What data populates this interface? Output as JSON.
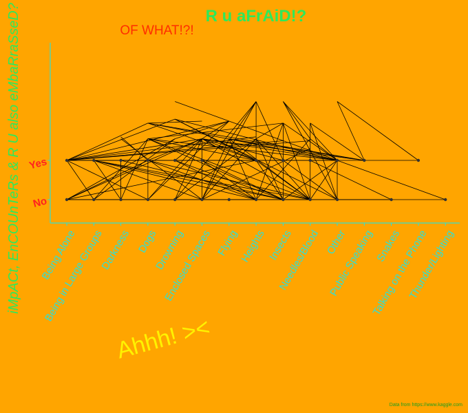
{
  "chart_data": {
    "type": "line",
    "title": "R u aFrAiD!?",
    "subtitle": "OF WHAT!?!",
    "ylabel": "iMpACt, EnCOUnTeRs & R U also eMbaRraSseD?",
    "annotation": "Ahhh! ><",
    "source": "Data from https://www.kaggle.com",
    "categories": [
      "Being Alone",
      "Being in Large Groups",
      "Darkness",
      "Dogs",
      "Drowning",
      "Enclosed Spaces",
      "Flying",
      "Heights",
      "Insects",
      "Needles/Blood",
      "Other",
      "Public Speaking",
      "Snakes",
      "Talking on the Phone",
      "Thunder/Lighting"
    ],
    "y_levels": [
      "No",
      "Yes"
    ],
    "y_range": [
      0,
      2.5
    ],
    "points": [
      {
        "x": "Being Alone",
        "y": 0
      },
      {
        "x": "Being in Large Groups",
        "y": 0
      },
      {
        "x": "Darkness",
        "y": 0
      },
      {
        "x": "Dogs",
        "y": 0
      },
      {
        "x": "Drowning",
        "y": 0
      },
      {
        "x": "Enclosed Spaces",
        "y": 0
      },
      {
        "x": "Flying",
        "y": 0
      },
      {
        "x": "Heights",
        "y": 0
      },
      {
        "x": "Insects",
        "y": 0
      },
      {
        "x": "Needles/Blood",
        "y": 0
      },
      {
        "x": "Other",
        "y": 0
      },
      {
        "x": "Snakes",
        "y": 0
      },
      {
        "x": "Thunder/Lighting",
        "y": 0
      },
      {
        "x": "Being Alone",
        "y": 1
      },
      {
        "x": "Being in Large Groups",
        "y": 1
      },
      {
        "x": "Darkness",
        "y": 1
      },
      {
        "x": "Dogs",
        "y": 1
      },
      {
        "x": "Drowning",
        "y": 1
      },
      {
        "x": "Enclosed Spaces",
        "y": 1
      },
      {
        "x": "Heights",
        "y": 1
      },
      {
        "x": "Insects",
        "y": 1
      },
      {
        "x": "Needles/Blood",
        "y": 1
      },
      {
        "x": "Other",
        "y": 1
      },
      {
        "x": "Public Speaking",
        "y": 1
      },
      {
        "x": "Talking on the Phone",
        "y": 1
      }
    ],
    "edges": [
      [
        "Being Alone",
        1,
        "Drowning",
        2.05
      ],
      [
        "Being Alone",
        1,
        "Enclosed Spaces",
        1.55
      ],
      [
        "Being Alone",
        1,
        "Dogs",
        1.95
      ],
      [
        "Being Alone",
        1,
        "Flying",
        2.0
      ],
      [
        "Being Alone",
        1,
        "Heights",
        1.6
      ],
      [
        "Being Alone",
        1,
        "Insects",
        1.5
      ],
      [
        "Being Alone",
        1,
        "Needles/Blood",
        1.5
      ],
      [
        "Being Alone",
        1,
        "Other",
        1
      ],
      [
        "Being Alone",
        1,
        "Being in Large Groups",
        1
      ],
      [
        "Being Alone",
        1,
        "Being in Large Groups",
        0
      ],
      [
        "Being Alone",
        1,
        "Dogs",
        0
      ],
      [
        "Being Alone",
        0,
        "Dogs",
        1
      ],
      [
        "Being Alone",
        0,
        "Enclosed Spaces",
        1.55
      ],
      [
        "Being Alone",
        0,
        "Drowning",
        1.55
      ],
      [
        "Being Alone",
        0,
        "Heights",
        1
      ],
      [
        "Being Alone",
        0,
        "Needles/Blood",
        0
      ],
      [
        "Being in Large Groups",
        1,
        "Needles/Blood",
        0
      ],
      [
        "Being in Large Groups",
        1,
        "Insects",
        0
      ],
      [
        "Being in Large Groups",
        1,
        "Heights",
        0
      ],
      [
        "Being in Large Groups",
        1,
        "Dogs",
        1
      ],
      [
        "Being in Large Groups",
        1,
        "Darkness",
        0
      ],
      [
        "Being in Large Groups",
        1,
        "Enclosed Spaces",
        0
      ],
      [
        "Being in Large Groups",
        0,
        "Dogs",
        1.55
      ],
      [
        "Being in Large Groups",
        0,
        "Drowning",
        1.55
      ],
      [
        "Darkness",
        1,
        "Insects",
        0
      ],
      [
        "Darkness",
        1,
        "Dogs",
        1
      ],
      [
        "Darkness",
        1,
        "Darkness",
        0
      ],
      [
        "Darkness",
        0,
        "Dogs",
        1.55
      ],
      [
        "Darkness",
        1.55,
        "Enclosed Spaces",
        0
      ],
      [
        "Darkness",
        1.6,
        "Dogs",
        1
      ],
      [
        "Dogs",
        1,
        "Dogs",
        0
      ],
      [
        "Dogs",
        1,
        "Heights",
        0
      ],
      [
        "Dogs",
        1,
        "Needles/Blood",
        0
      ],
      [
        "Dogs",
        1,
        "Enclosed Spaces",
        1.55
      ],
      [
        "Dogs",
        1.55,
        "Needles/Blood",
        0
      ],
      [
        "Dogs",
        1.55,
        "Other",
        1
      ],
      [
        "Dogs",
        1.55,
        "Heights",
        1
      ],
      [
        "Dogs",
        1.55,
        "Insects",
        0
      ],
      [
        "Dogs",
        1.95,
        "Heights",
        1
      ],
      [
        "Dogs",
        1.95,
        "Other",
        1
      ],
      [
        "Dogs",
        1.95,
        "Public Speaking",
        1
      ],
      [
        "Dogs",
        1.95,
        "Enclosed Spaces",
        2.0
      ],
      [
        "Dogs",
        0,
        "Enclosed Spaces",
        1.55
      ],
      [
        "Drowning",
        1,
        "Enclosed Spaces",
        1.55
      ],
      [
        "Drowning",
        1,
        "Heights",
        0
      ],
      [
        "Drowning",
        1,
        "Insects",
        0
      ],
      [
        "Drowning",
        2.05,
        "Heights",
        1
      ],
      [
        "Drowning",
        2.05,
        "Other",
        0
      ],
      [
        "Drowning",
        2.05,
        "Other",
        1
      ],
      [
        "Drowning",
        0,
        "Heights",
        1.55
      ],
      [
        "Drowning",
        0,
        "Enclosed Spaces",
        1.55
      ],
      [
        "Enclosed Spaces",
        1.55,
        "Enclosed Spaces",
        0
      ],
      [
        "Enclosed Spaces",
        1.55,
        "Needles/Blood",
        0
      ],
      [
        "Enclosed Spaces",
        1.55,
        "Other",
        1
      ],
      [
        "Enclosed Spaces",
        1.55,
        "Public Speaking",
        1
      ],
      [
        "Enclosed Spaces",
        1.55,
        "Heights",
        1
      ],
      [
        "Enclosed Spaces",
        1.55,
        "Insects",
        1
      ],
      [
        "Enclosed Spaces",
        1,
        "Heights",
        0
      ],
      [
        "Enclosed Spaces",
        1,
        "Insects",
        0
      ],
      [
        "Enclosed Spaces",
        0,
        "Flying",
        1.55
      ],
      [
        "Enclosed Spaces",
        0,
        "Heights",
        1.55
      ],
      [
        "Enclosed Spaces",
        0,
        "Needles/Blood",
        1.3
      ],
      [
        "Flying",
        2.0,
        "Drowning",
        1.55
      ],
      [
        "Flying",
        2.0,
        "Enclosed Spaces",
        1.55
      ],
      [
        "Flying",
        2.0,
        "Dogs",
        0
      ],
      [
        "Flying",
        1.55,
        "Other",
        1
      ],
      [
        "Flying",
        1.55,
        "Public Speaking",
        1
      ],
      [
        "Flying",
        1.55,
        "Heights",
        0
      ],
      [
        "Flying",
        1.55,
        "Needles/Blood",
        0
      ],
      [
        "Heights",
        2.5,
        "Heights",
        1
      ],
      [
        "Heights",
        2.5,
        "Insects",
        1
      ],
      [
        "Heights",
        2.5,
        "Drowning",
        0
      ],
      [
        "Heights",
        2.5,
        "Enclosed Spaces",
        0
      ],
      [
        "Heights",
        2.5,
        "Flying",
        1.5
      ],
      [
        "Heights",
        1,
        "Needles/Blood",
        0
      ],
      [
        "Heights",
        1,
        "Insects",
        0
      ],
      [
        "Heights",
        1.55,
        "Insects",
        0
      ],
      [
        "Heights",
        1.55,
        "Needles/Blood",
        0
      ],
      [
        "Heights",
        0,
        "Insects",
        1.95
      ],
      [
        "Heights",
        0,
        "Needles/Blood",
        1.55
      ],
      [
        "Insects",
        2.5,
        "Other",
        1
      ],
      [
        "Insects",
        2.5,
        "Other",
        0
      ],
      [
        "Insects",
        2.5,
        "Needles/Blood",
        1.55
      ],
      [
        "Insects",
        1.95,
        "Insects",
        0
      ],
      [
        "Insects",
        1.95,
        "Other",
        1
      ],
      [
        "Insects",
        1.95,
        "Needles/Blood",
        0
      ],
      [
        "Insects",
        1.95,
        "Dogs",
        1.55
      ],
      [
        "Insects",
        1.95,
        "Heights",
        1.55
      ],
      [
        "Insects",
        1,
        "Other",
        0
      ],
      [
        "Insects",
        0,
        "Other",
        1
      ],
      [
        "Needles/Blood",
        1.95,
        "Public Speaking",
        1
      ],
      [
        "Needles/Blood",
        1.95,
        "Needles/Blood",
        0
      ],
      [
        "Needles/Blood",
        1.95,
        "Other",
        0
      ],
      [
        "Needles/Blood",
        1.55,
        "Other",
        1
      ],
      [
        "Needles/Blood",
        0,
        "Other",
        1
      ],
      [
        "Needles/Blood",
        1,
        "Snakes",
        0
      ],
      [
        "Other",
        2.5,
        "Talking on the Phone",
        1
      ],
      [
        "Other",
        2.5,
        "Public Speaking",
        1
      ],
      [
        "Other",
        1,
        "Other",
        0
      ],
      [
        "Other",
        0,
        "Snakes",
        0
      ],
      [
        "Other",
        1,
        "Thunder/Lighting",
        0
      ],
      [
        "Drowning",
        2.5,
        "Other",
        1
      ],
      [
        "Being Alone",
        0,
        "Snakes",
        0
      ]
    ]
  }
}
